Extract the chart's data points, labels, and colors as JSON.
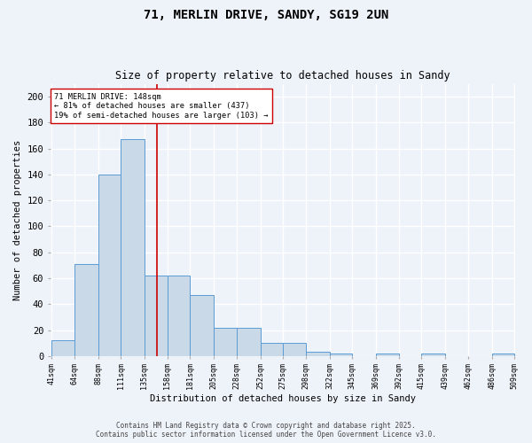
{
  "title1": "71, MERLIN DRIVE, SANDY, SG19 2UN",
  "title2": "Size of property relative to detached houses in Sandy",
  "xlabel": "Distribution of detached houses by size in Sandy",
  "ylabel": "Number of detached properties",
  "bin_edges": [
    41,
    64,
    88,
    111,
    135,
    158,
    181,
    205,
    228,
    252,
    275,
    298,
    322,
    345,
    369,
    392,
    415,
    439,
    462,
    486,
    509
  ],
  "bar_heights": [
    12,
    71,
    140,
    167,
    62,
    62,
    47,
    22,
    22,
    10,
    10,
    3,
    2,
    0,
    2,
    0,
    2,
    0,
    0,
    2
  ],
  "bar_color": "#c9d9e8",
  "bar_edge_color": "#5b9bd5",
  "tick_labels": [
    "41sqm",
    "64sqm",
    "88sqm",
    "111sqm",
    "135sqm",
    "158sqm",
    "181sqm",
    "205sqm",
    "228sqm",
    "252sqm",
    "275sqm",
    "298sqm",
    "322sqm",
    "345sqm",
    "369sqm",
    "392sqm",
    "415sqm",
    "439sqm",
    "462sqm",
    "486sqm",
    "509sqm"
  ],
  "vline_x": 148,
  "vline_color": "#cc0000",
  "annotation_text": "71 MERLIN DRIVE: 148sqm\n← 81% of detached houses are smaller (437)\n19% of semi-detached houses are larger (103) →",
  "annotation_box_color": "#ffffff",
  "annotation_border_color": "#cc0000",
  "ylim": [
    0,
    210
  ],
  "yticks": [
    0,
    20,
    40,
    60,
    80,
    100,
    120,
    140,
    160,
    180,
    200
  ],
  "footer1": "Contains HM Land Registry data © Crown copyright and database right 2025.",
  "footer2": "Contains public sector information licensed under the Open Government Licence v3.0.",
  "bg_color": "#eef2f9",
  "grid_color": "#ffffff"
}
